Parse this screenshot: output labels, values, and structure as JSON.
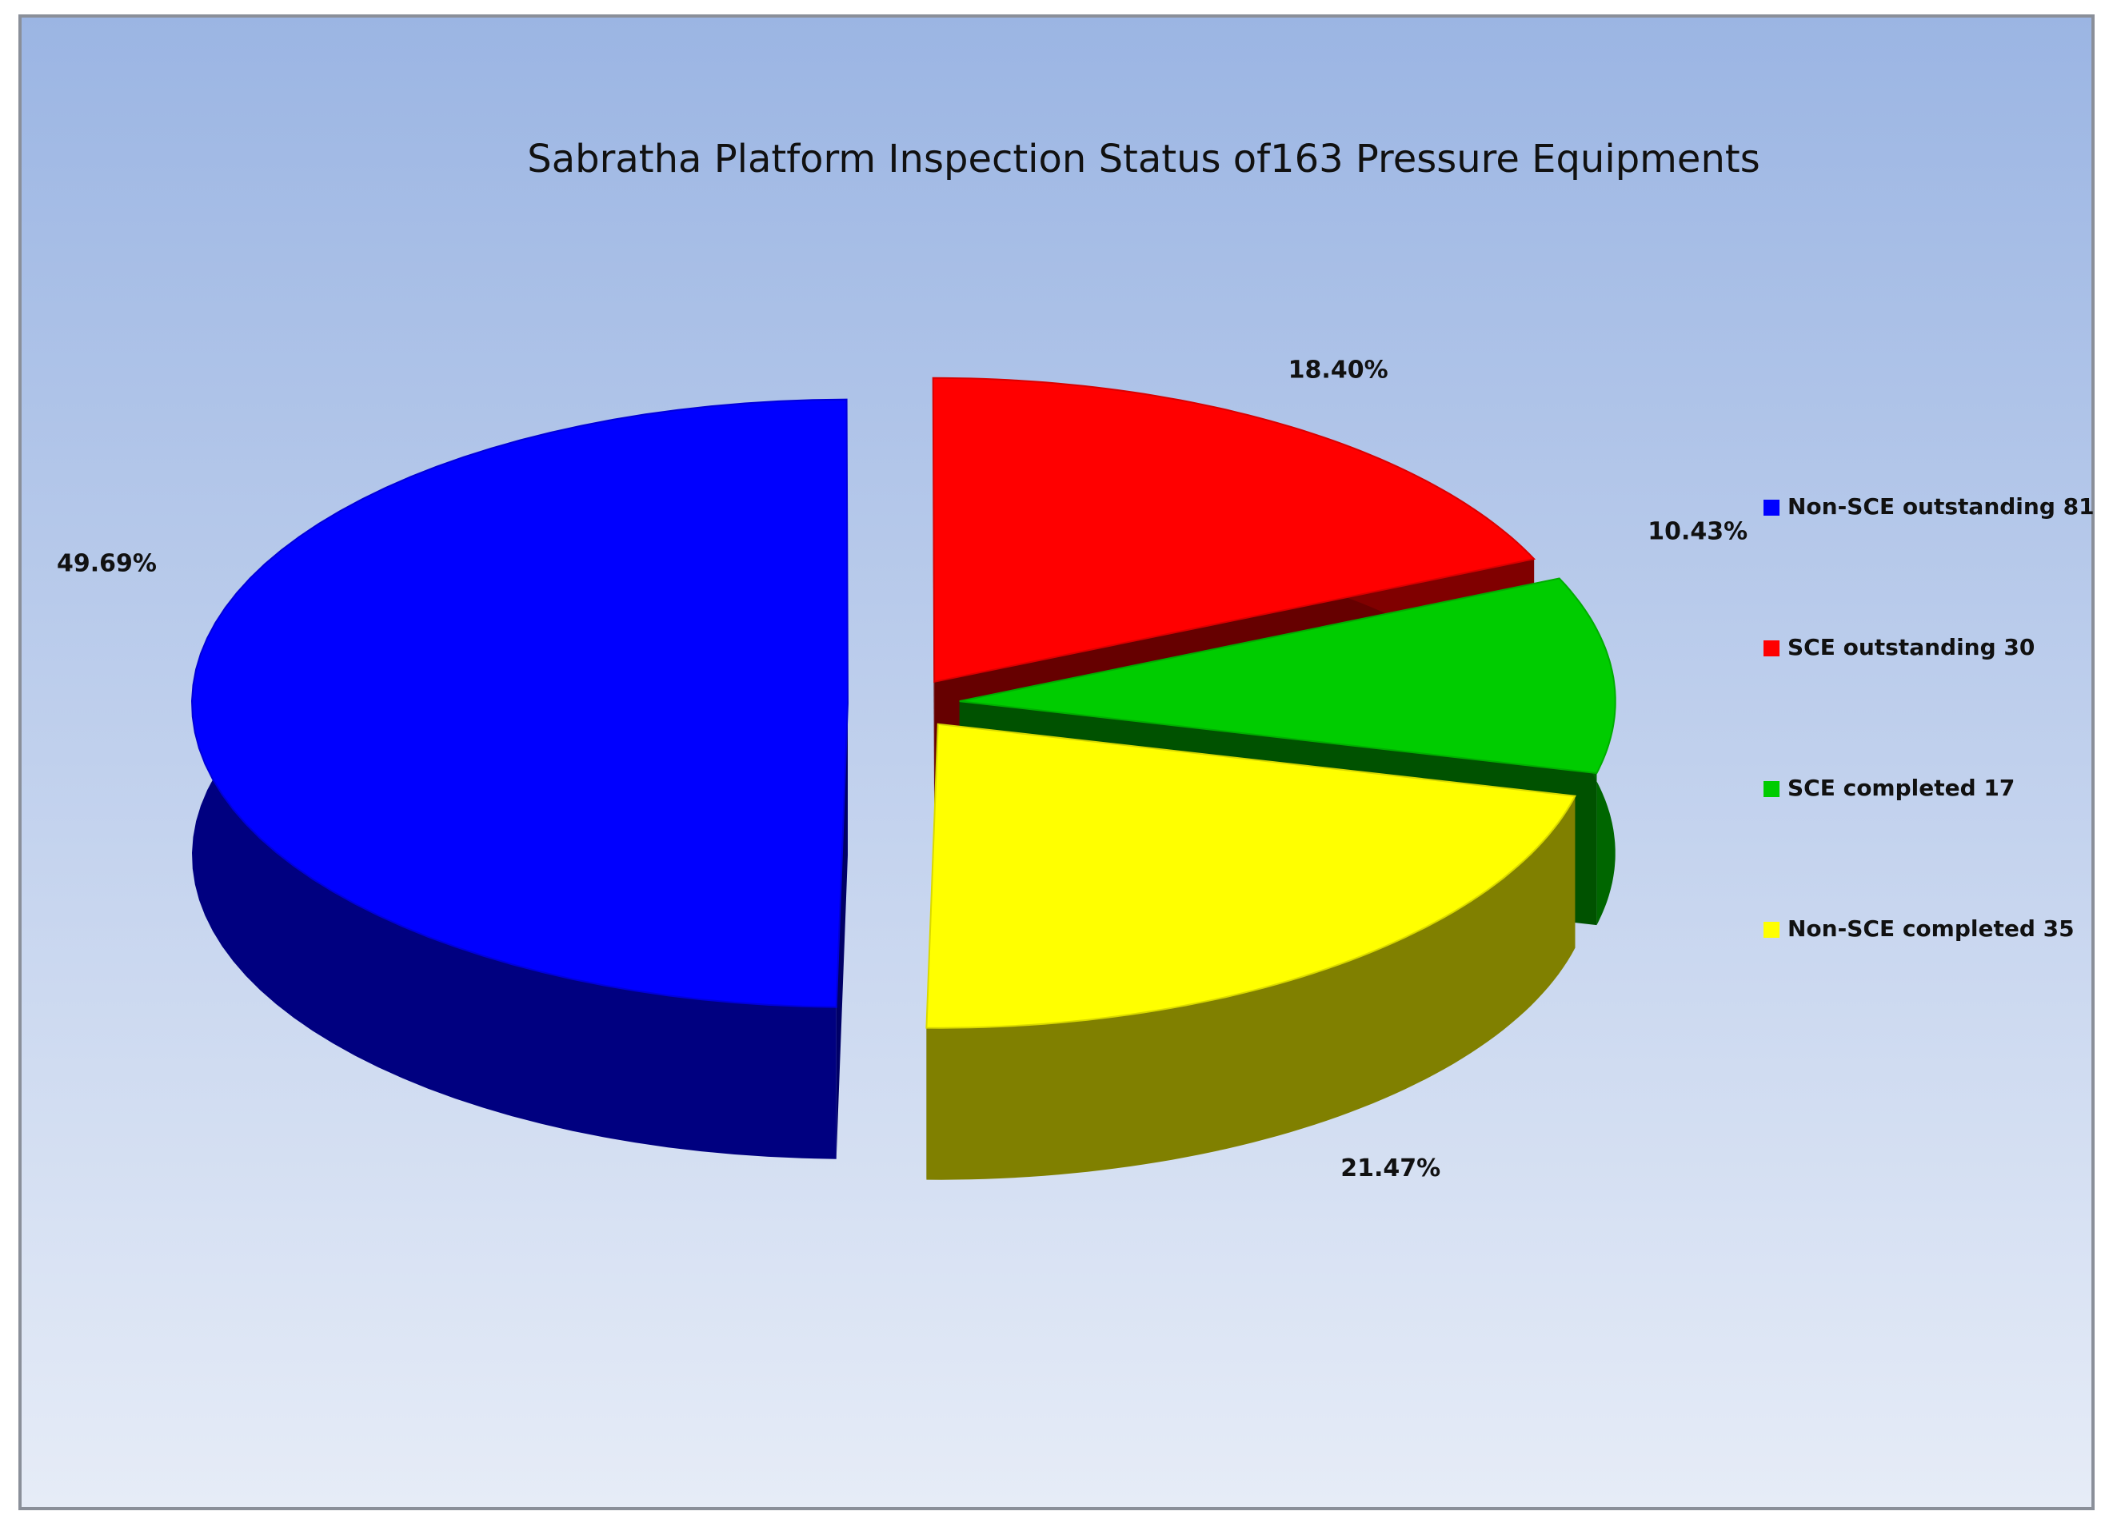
{
  "chart_data": {
    "type": "pie",
    "title": "Sabratha Platform Inspection Status of163 Pressure Equipments",
    "categories": [
      "Non-SCE outstanding 81",
      "SCE outstanding 30",
      "SCE completed 17",
      "Non-SCE completed 35"
    ],
    "values": [
      49.69,
      18.4,
      10.43,
      21.47
    ],
    "value_labels": [
      "49.69%",
      "18.40%",
      "10.43%",
      "21.47%"
    ],
    "colors": [
      "#0000ff",
      "#ff0000",
      "#00cc00",
      "#ffff00"
    ]
  }
}
